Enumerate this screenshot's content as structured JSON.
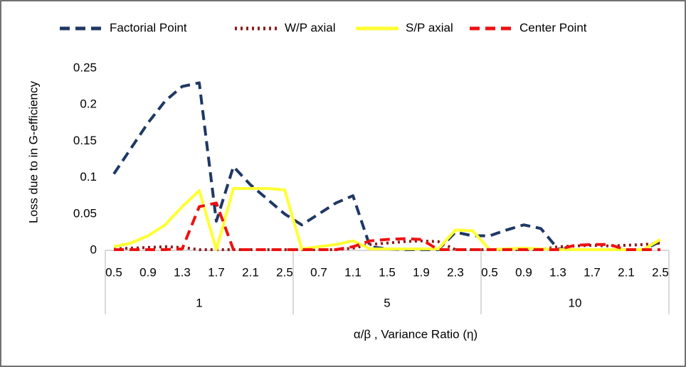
{
  "chart_data": {
    "type": "line",
    "x_title": "α/β , Variance Ratio (η)",
    "y_title": "Loss due to in G-efficiency",
    "categories": [
      "0.5",
      null,
      "0.9",
      null,
      "1.3",
      null,
      "1.7",
      null,
      "2.1",
      null,
      "2.5",
      null,
      "0.7",
      null,
      "1.1",
      null,
      "1.5",
      null,
      "1.9",
      null,
      "2.3",
      null,
      "0.5",
      null,
      "0.9",
      null,
      "1.3",
      null,
      "1.7",
      null,
      "2.1",
      null,
      "2.5"
    ],
    "groups": [
      "1",
      "5",
      "10"
    ],
    "ylim": [
      0,
      0.25
    ],
    "yticks": [
      0,
      0.05,
      0.1,
      0.15,
      0.2,
      0.25
    ],
    "grid": false,
    "legend": "top",
    "series": [
      {
        "name": "Factorial Point",
        "color": "#1f3864",
        "style": "dashed",
        "values": [
          0.105,
          0.14,
          0.175,
          0.205,
          0.225,
          0.23,
          0.04,
          0.115,
          0.09,
          0.07,
          0.05,
          0.035,
          0.05,
          0.065,
          0.075,
          0.005,
          0.002,
          0.001,
          0.001,
          0.001,
          0.025,
          0.02,
          0.02,
          0.028,
          0.035,
          0.03,
          0.002,
          0.001,
          0.001,
          0.001,
          0.001,
          0.001,
          0.012
        ]
      },
      {
        "name": "W/P axial",
        "color": "#8b1a1a",
        "style": "dotted",
        "values": [
          0.002,
          0.003,
          0.004,
          0.005,
          0.004,
          0.001,
          0.001,
          0.001,
          0.001,
          0.001,
          0.001,
          0.001,
          0.001,
          0.001,
          0.003,
          0.008,
          0.01,
          0.012,
          0.013,
          0.012,
          0.001,
          0.001,
          0.001,
          0.001,
          0.001,
          0.001,
          0.005,
          0.006,
          0.007,
          0.006,
          0.007,
          0.008,
          0.01
        ]
      },
      {
        "name": "S/P axial",
        "color": "#ffff33",
        "style": "solid",
        "values": [
          0.005,
          0.01,
          0.02,
          0.035,
          0.06,
          0.082,
          0.001,
          0.085,
          0.085,
          0.085,
          0.083,
          0.002,
          0.005,
          0.008,
          0.013,
          0.002,
          0.002,
          0.002,
          0.002,
          0.002,
          0.028,
          0.027,
          0.001,
          0.002,
          0.003,
          0.002,
          0.001,
          0.001,
          0.001,
          0.001,
          0.001,
          0.001,
          0.015
        ]
      },
      {
        "name": "Center Point",
        "color": "#ee1111",
        "style": "dashed",
        "values": [
          0.001,
          0.001,
          0.001,
          0.001,
          0.002,
          0.06,
          0.065,
          0.001,
          0.001,
          0.001,
          0.001,
          0.001,
          0.001,
          0.001,
          0.005,
          0.013,
          0.015,
          0.016,
          0.015,
          0.001,
          0.001,
          0.001,
          0.001,
          0.001,
          0.001,
          0.001,
          0.001,
          0.007,
          0.008,
          0.008,
          0.001,
          0.001,
          0.001
        ]
      }
    ]
  }
}
